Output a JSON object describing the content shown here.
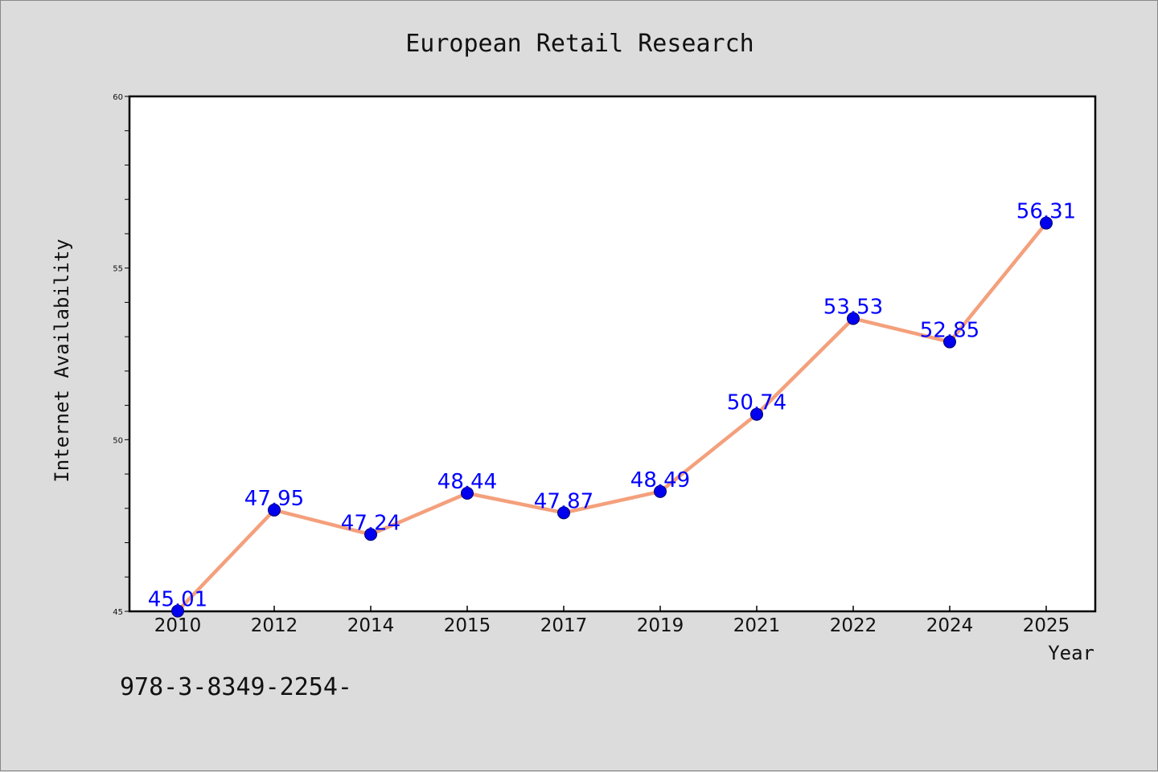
{
  "chart_data": {
    "type": "line",
    "title": "European Retail Research",
    "xlabel": "Year",
    "ylabel": "Internet Availability",
    "categories": [
      "2010",
      "2012",
      "2014",
      "2015",
      "2017",
      "2019",
      "2021",
      "2022",
      "2024",
      "2025"
    ],
    "series": [
      {
        "values": [
          45.01,
          47.95,
          47.24,
          48.44,
          47.87,
          48.49,
          50.74,
          53.53,
          52.85,
          56.31
        ],
        "line_color": "#f4a07c",
        "marker_color": "#0000ee"
      }
    ],
    "data_labels": [
      "45.01",
      "47.95",
      "47.24",
      "48.44",
      "47.87",
      "48.49",
      "50.74",
      "53.53",
      "52.85",
      "56.31"
    ],
    "ylim": [
      45,
      60
    ],
    "yticks": [
      45,
      50,
      55,
      60
    ],
    "ytick_labels": [
      "45",
      "50",
      "55",
      "60"
    ],
    "grid": false,
    "data_label_color": "#0000ff"
  },
  "footnote": "978-3-8349-2254-"
}
